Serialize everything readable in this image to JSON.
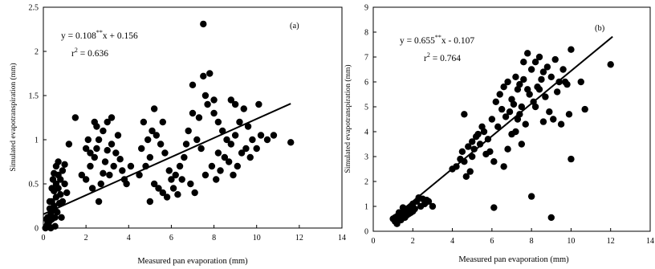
{
  "chart_data": [
    {
      "type": "scatter",
      "panel_label": "(a)",
      "xlabel": "Measured pan evaporation  (mm)",
      "ylabel": "Simulated evapotranspiration (mm)",
      "xlim": [
        0,
        14
      ],
      "ylim": [
        0,
        2.5
      ],
      "xticks": [
        0,
        2,
        4,
        6,
        8,
        10,
        12,
        14
      ],
      "yticks": [
        "0",
        "0.5",
        "1",
        "1.5",
        "2",
        "2.5"
      ],
      "equation": {
        "prefix": "y = 0.108",
        "sup": "**",
        "suffix": "x + 0.156"
      },
      "r2": {
        "prefix": "r",
        "sup": "2",
        "suffix": " = 0.636"
      },
      "fit": {
        "slope": 0.108,
        "intercept": 0.156,
        "x_range": [
          0,
          11.6
        ]
      },
      "grid": false,
      "points": [
        [
          0.1,
          0.0
        ],
        [
          0.15,
          0.02
        ],
        [
          0.2,
          0.05
        ],
        [
          0.25,
          0.03
        ],
        [
          0.3,
          0.08
        ],
        [
          0.2,
          0.12
        ],
        [
          0.35,
          0.15
        ],
        [
          0.3,
          0.22
        ],
        [
          0.4,
          0.1
        ],
        [
          0.45,
          0.2
        ],
        [
          0.5,
          0.25
        ],
        [
          0.4,
          0.3
        ],
        [
          0.6,
          0.35
        ],
        [
          0.5,
          0.42
        ],
        [
          0.7,
          0.45
        ],
        [
          0.6,
          0.5
        ],
        [
          0.8,
          0.55
        ],
        [
          0.7,
          0.6
        ],
        [
          0.9,
          0.65
        ],
        [
          0.6,
          0.7
        ],
        [
          0.5,
          0.62
        ],
        [
          0.8,
          0.38
        ],
        [
          0.9,
          0.3
        ],
        [
          1.0,
          0.5
        ],
        [
          0.4,
          0.45
        ],
        [
          0.3,
          0.3
        ],
        [
          0.55,
          0.12
        ],
        [
          0.65,
          0.18
        ],
        [
          0.75,
          0.28
        ],
        [
          0.45,
          0.55
        ],
        [
          1.0,
          0.72
        ],
        [
          0.7,
          0.75
        ],
        [
          1.2,
          0.95
        ],
        [
          1.5,
          1.25
        ],
        [
          1.1,
          0.4
        ],
        [
          0.25,
          0.08
        ],
        [
          0.35,
          0.0
        ],
        [
          0.55,
          0.02
        ],
        [
          0.15,
          0.1
        ],
        [
          0.85,
          0.12
        ],
        [
          1.8,
          0.6
        ],
        [
          2.0,
          0.55
        ],
        [
          2.2,
          0.7
        ],
        [
          2.4,
          0.8
        ],
        [
          2.5,
          0.9
        ],
        [
          2.6,
          1.0
        ],
        [
          2.8,
          1.1
        ],
        [
          3.0,
          1.2
        ],
        [
          3.2,
          0.95
        ],
        [
          3.4,
          0.85
        ],
        [
          2.3,
          0.45
        ],
        [
          2.7,
          0.5
        ],
        [
          3.1,
          0.6
        ],
        [
          3.3,
          0.7
        ],
        [
          2.9,
          0.75
        ],
        [
          2.1,
          1.0
        ],
        [
          2.5,
          1.15
        ],
        [
          3.5,
          1.05
        ],
        [
          3.7,
          0.65
        ],
        [
          3.9,
          0.5
        ],
        [
          2.6,
          0.3
        ],
        [
          2.8,
          0.62
        ],
        [
          3.0,
          0.88
        ],
        [
          2.2,
          0.85
        ],
        [
          3.6,
          0.78
        ],
        [
          4.1,
          0.7
        ],
        [
          2.4,
          1.2
        ],
        [
          3.2,
          1.25
        ],
        [
          2.0,
          0.9
        ],
        [
          3.8,
          0.55
        ],
        [
          4.5,
          0.6
        ],
        [
          4.8,
          0.7
        ],
        [
          5.0,
          0.8
        ],
        [
          5.2,
          0.5
        ],
        [
          5.4,
          0.45
        ],
        [
          5.6,
          0.4
        ],
        [
          5.8,
          0.35
        ],
        [
          6.0,
          0.55
        ],
        [
          6.2,
          0.6
        ],
        [
          6.4,
          0.7
        ],
        [
          4.6,
          0.9
        ],
        [
          4.9,
          1.0
        ],
        [
          5.1,
          1.1
        ],
        [
          5.3,
          1.05
        ],
        [
          5.5,
          0.95
        ],
        [
          5.7,
          0.85
        ],
        [
          5.9,
          0.65
        ],
        [
          6.1,
          0.45
        ],
        [
          6.3,
          0.38
        ],
        [
          5.0,
          0.3
        ],
        [
          4.7,
          1.2
        ],
        [
          5.2,
          1.35
        ],
        [
          5.6,
          1.2
        ],
        [
          6.5,
          0.55
        ],
        [
          6.6,
          0.8
        ],
        [
          6.8,
          1.1
        ],
        [
          7.0,
          1.3
        ],
        [
          7.2,
          1.0
        ],
        [
          7.4,
          0.9
        ],
        [
          7.6,
          0.6
        ],
        [
          7.5,
          2.31
        ],
        [
          7.0,
          1.62
        ],
        [
          7.5,
          1.72
        ],
        [
          7.8,
          1.75
        ],
        [
          7.6,
          1.5
        ],
        [
          8.0,
          1.3
        ],
        [
          8.2,
          1.2
        ],
        [
          8.4,
          1.1
        ],
        [
          8.6,
          1.0
        ],
        [
          8.8,
          0.95
        ],
        [
          9.0,
          1.05
        ],
        [
          9.2,
          1.2
        ],
        [
          9.4,
          1.35
        ],
        [
          9.6,
          1.15
        ],
        [
          9.8,
          1.0
        ],
        [
          10.0,
          0.9
        ],
        [
          7.9,
          0.7
        ],
        [
          8.1,
          0.55
        ],
        [
          8.3,
          0.65
        ],
        [
          8.5,
          0.8
        ],
        [
          8.7,
          0.75
        ],
        [
          8.9,
          0.6
        ],
        [
          9.1,
          0.7
        ],
        [
          9.3,
          0.85
        ],
        [
          9.5,
          0.9
        ],
        [
          9.7,
          0.8
        ],
        [
          10.2,
          1.05
        ],
        [
          10.5,
          1.0
        ],
        [
          10.8,
          1.05
        ],
        [
          11.6,
          0.97
        ],
        [
          7.3,
          1.25
        ],
        [
          7.7,
          1.4
        ],
        [
          8.0,
          1.45
        ],
        [
          8.8,
          1.45
        ],
        [
          9.0,
          1.4
        ],
        [
          10.1,
          1.4
        ],
        [
          7.1,
          0.4
        ],
        [
          6.9,
          0.5
        ],
        [
          6.7,
          0.95
        ],
        [
          8.2,
          0.85
        ]
      ]
    },
    {
      "type": "scatter",
      "panel_label": "(b)",
      "xlabel": "Measured pan evaporation  (mm)",
      "ylabel": "Simulated evapotranspiration (mm)",
      "xlim": [
        0,
        14
      ],
      "ylim": [
        0,
        9
      ],
      "xticks": [
        0,
        2,
        4,
        6,
        8,
        10,
        12,
        14
      ],
      "yticks": [
        "0",
        "1",
        "2",
        "3",
        "4",
        "5",
        "6",
        "7",
        "8",
        "9"
      ],
      "equation": {
        "prefix": "y = 0.655",
        "sup": "**",
        "suffix": "x - 0.107"
      },
      "r2": {
        "prefix": "r",
        "sup": "2",
        "suffix": " = 0.764"
      },
      "fit": {
        "slope": 0.655,
        "intercept": -0.107,
        "x_range": [
          0.9,
          12.1
        ]
      },
      "grid": false,
      "points": [
        [
          1.0,
          0.5
        ],
        [
          1.1,
          0.4
        ],
        [
          1.2,
          0.6
        ],
        [
          1.3,
          0.5
        ],
        [
          1.4,
          0.7
        ],
        [
          1.5,
          0.6
        ],
        [
          1.6,
          0.8
        ],
        [
          1.7,
          0.9
        ],
        [
          1.8,
          0.7
        ],
        [
          1.9,
          1.0
        ],
        [
          1.2,
          0.3
        ],
        [
          1.4,
          0.45
        ],
        [
          1.6,
          0.55
        ],
        [
          1.8,
          0.85
        ],
        [
          2.0,
          1.1
        ],
        [
          2.1,
          0.9
        ],
        [
          2.2,
          1.2
        ],
        [
          2.4,
          1.0
        ],
        [
          2.5,
          1.3
        ],
        [
          2.6,
          1.1
        ],
        [
          2.8,
          1.2
        ],
        [
          3.0,
          1.0
        ],
        [
          1.3,
          0.75
        ],
        [
          1.5,
          0.95
        ],
        [
          1.7,
          0.65
        ],
        [
          2.3,
          1.35
        ],
        [
          1.1,
          0.55
        ],
        [
          1.9,
          0.75
        ],
        [
          2.7,
          1.25
        ],
        [
          2.0,
          0.8
        ],
        [
          4.0,
          2.5
        ],
        [
          4.2,
          2.6
        ],
        [
          4.4,
          2.9
        ],
        [
          4.5,
          3.2
        ],
        [
          4.6,
          2.8
        ],
        [
          4.8,
          3.4
        ],
        [
          5.0,
          3.6
        ],
        [
          5.2,
          3.8
        ],
        [
          5.4,
          3.5
        ],
        [
          5.0,
          3.0
        ],
        [
          4.7,
          2.2
        ],
        [
          4.9,
          2.4
        ],
        [
          5.1,
          3.3
        ],
        [
          5.3,
          3.9
        ],
        [
          5.5,
          4.2
        ],
        [
          5.6,
          4.0
        ],
        [
          5.8,
          3.7
        ],
        [
          6.0,
          4.5
        ],
        [
          4.6,
          4.7
        ],
        [
          6.1,
          0.95
        ],
        [
          6.2,
          5.2
        ],
        [
          6.4,
          5.5
        ],
        [
          6.5,
          4.9
        ],
        [
          6.6,
          5.8
        ],
        [
          6.8,
          6.0
        ],
        [
          7.0,
          5.3
        ],
        [
          7.2,
          6.2
        ],
        [
          7.4,
          5.9
        ],
        [
          7.6,
          6.1
        ],
        [
          7.8,
          5.7
        ],
        [
          8.0,
          6.5
        ],
        [
          8.2,
          6.8
        ],
        [
          8.4,
          7.0
        ],
        [
          8.6,
          6.4
        ],
        [
          8.8,
          6.6
        ],
        [
          9.0,
          6.2
        ],
        [
          9.2,
          6.9
        ],
        [
          9.4,
          6.0
        ],
        [
          9.6,
          6.5
        ],
        [
          9.8,
          5.9
        ],
        [
          6.3,
          4.2
        ],
        [
          6.7,
          4.6
        ],
        [
          6.9,
          4.8
        ],
        [
          7.1,
          5.1
        ],
        [
          7.3,
          4.5
        ],
        [
          7.5,
          5.0
        ],
        [
          7.7,
          4.3
        ],
        [
          7.9,
          5.5
        ],
        [
          8.1,
          5.2
        ],
        [
          8.3,
          5.8
        ],
        [
          8.5,
          6.1
        ],
        [
          8.7,
          5.4
        ],
        [
          8.9,
          4.8
        ],
        [
          9.1,
          4.5
        ],
        [
          9.3,
          5.6
        ],
        [
          9.5,
          4.3
        ],
        [
          9.7,
          6.0
        ],
        [
          10.0,
          7.3
        ],
        [
          10.0,
          2.9
        ],
        [
          9.0,
          0.55
        ],
        [
          8.0,
          1.4
        ],
        [
          7.5,
          3.5
        ],
        [
          7.6,
          6.8
        ],
        [
          7.8,
          7.15
        ],
        [
          8.2,
          5.0
        ],
        [
          9.9,
          4.7
        ],
        [
          10.5,
          6.0
        ],
        [
          10.7,
          4.9
        ],
        [
          12.0,
          6.7
        ],
        [
          6.6,
          2.6
        ],
        [
          6.8,
          3.3
        ],
        [
          7.0,
          3.9
        ],
        [
          7.2,
          4.0
        ],
        [
          7.4,
          4.7
        ],
        [
          6.1,
          2.8
        ],
        [
          5.9,
          3.2
        ],
        [
          5.7,
          3.1
        ],
        [
          8.4,
          5.7
        ],
        [
          8.6,
          4.4
        ],
        [
          7.3,
          5.7
        ]
      ]
    }
  ]
}
